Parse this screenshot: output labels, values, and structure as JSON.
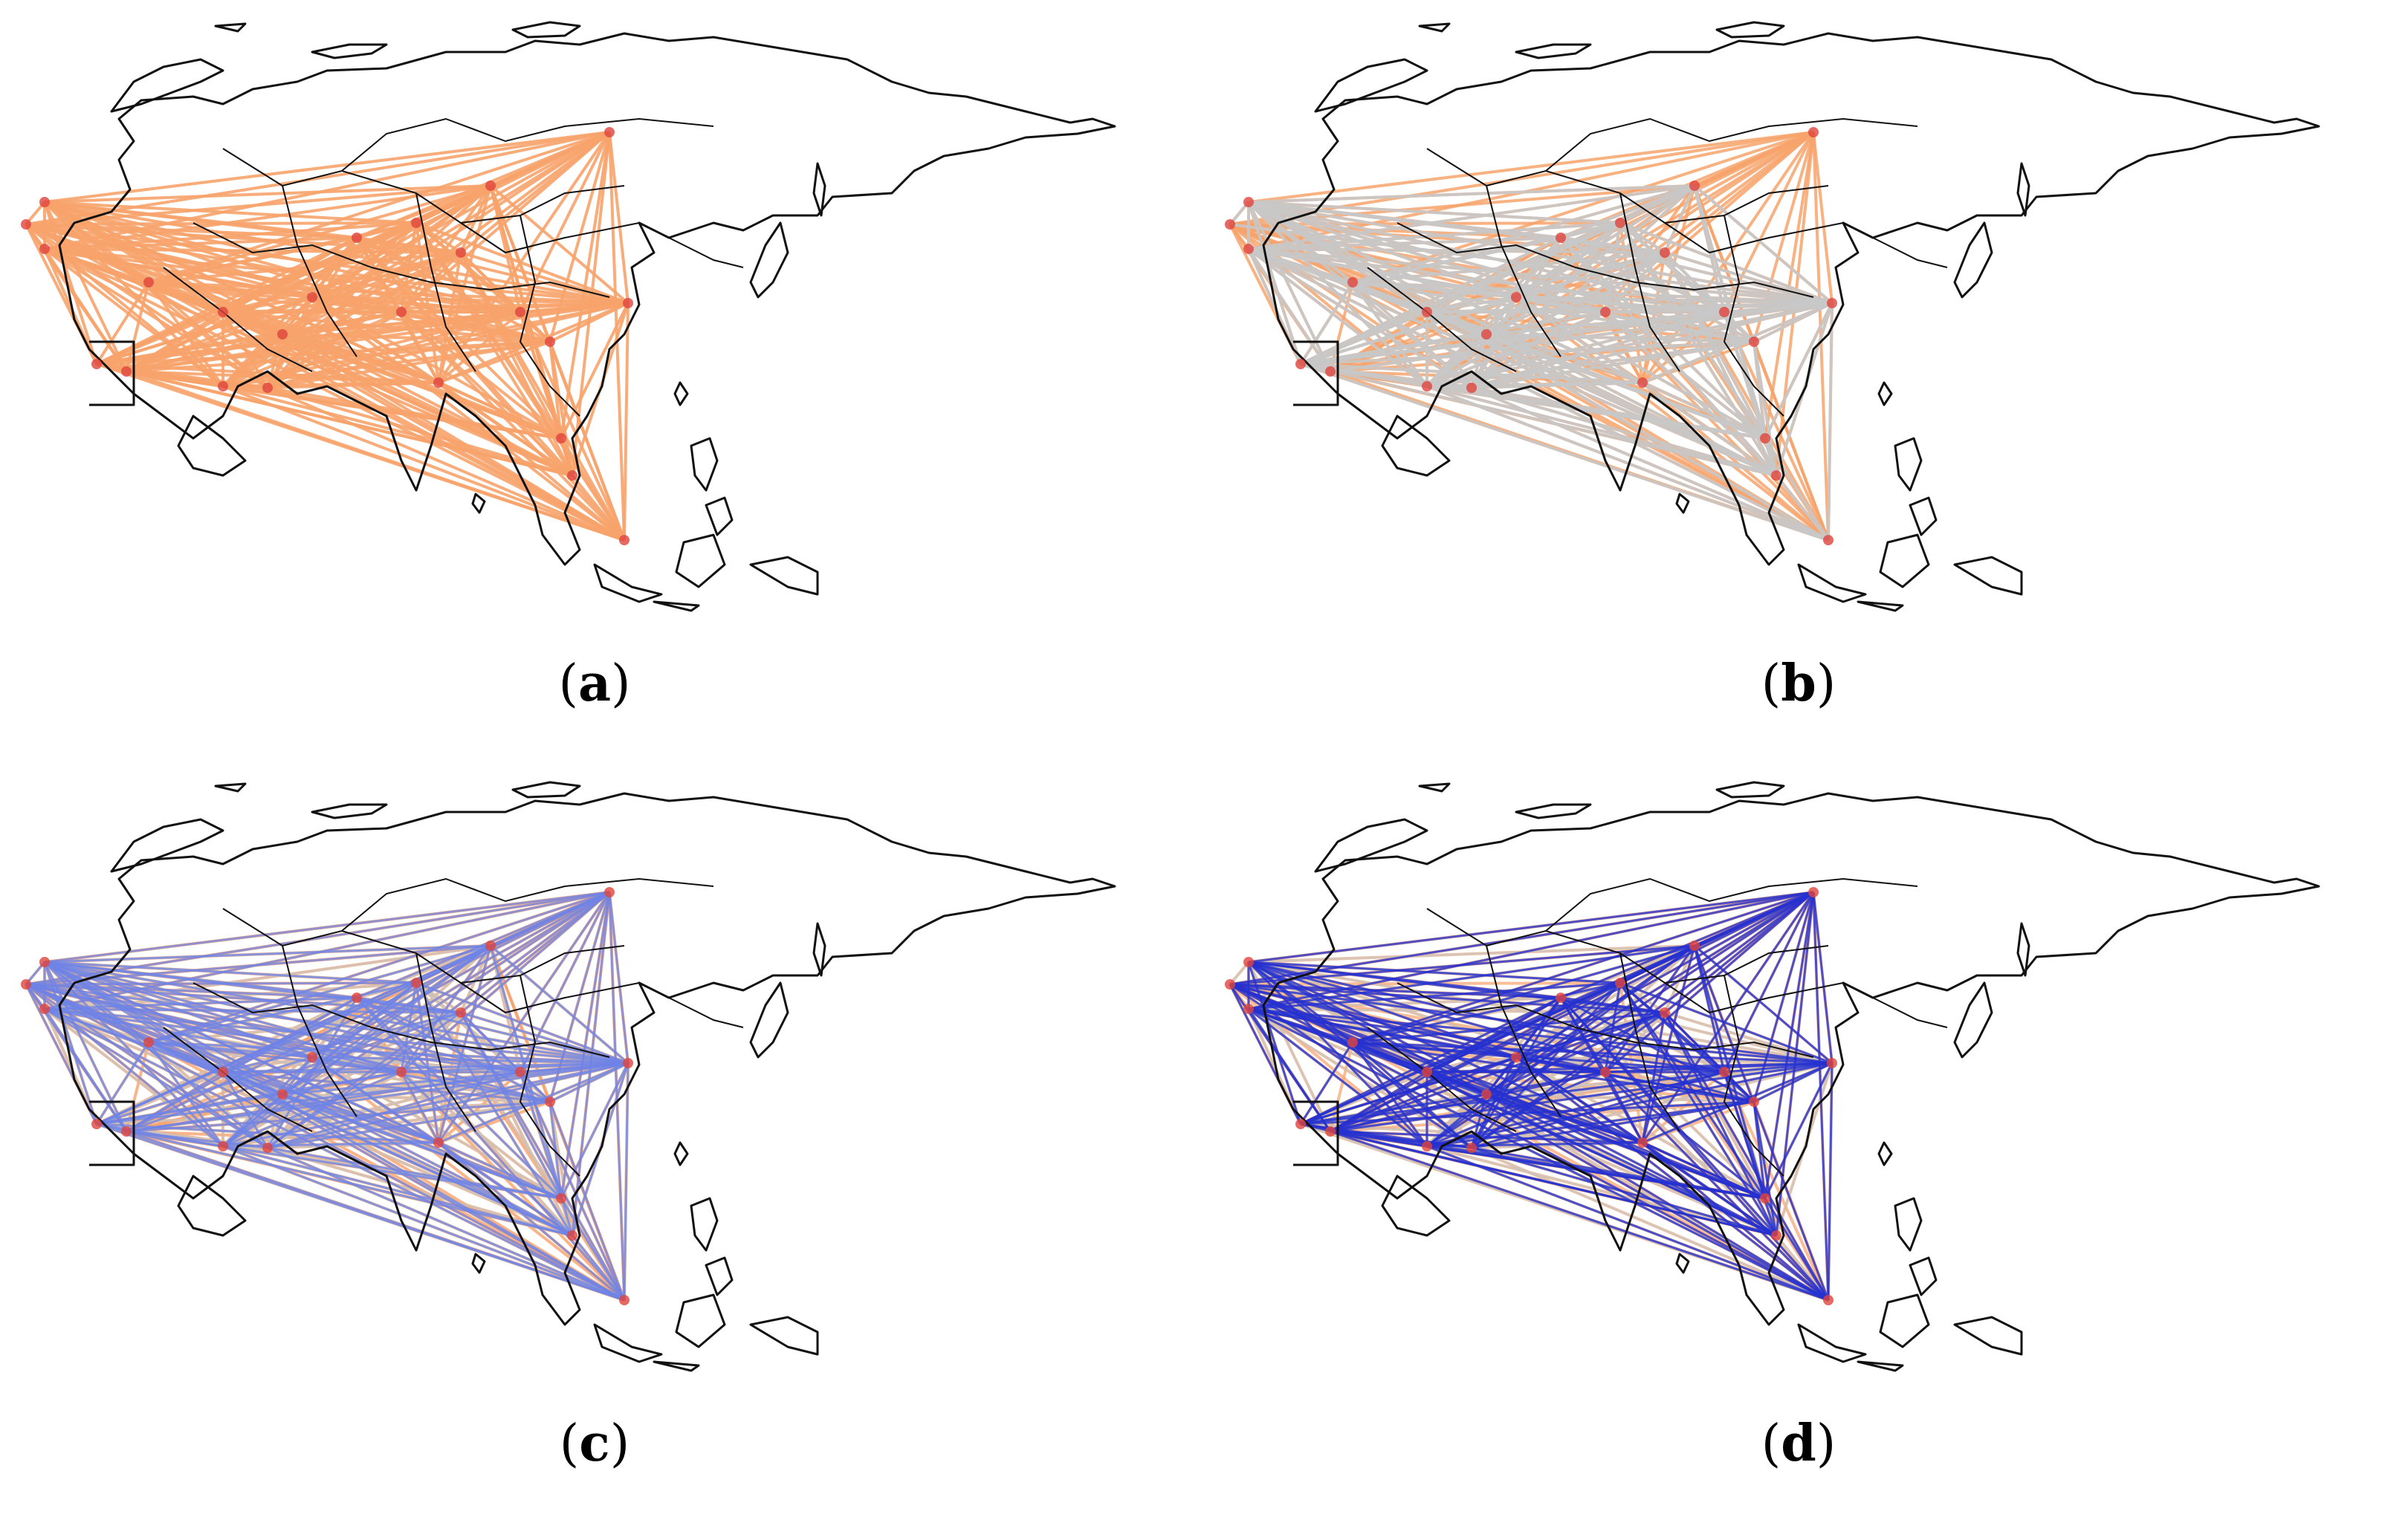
{
  "figure": {
    "panels": [
      {
        "id": "a",
        "label": "a"
      },
      {
        "id": "b",
        "label": "b"
      },
      {
        "id": "c",
        "label": "c"
      },
      {
        "id": "d",
        "label": "d"
      }
    ]
  },
  "colors": {
    "coastline": "#111111",
    "layer_orange": "#f7a36b",
    "layer_gray": "#c8c8c8",
    "layer_light_blue": "#6f83e6",
    "layer_dark_blue": "#2531d0",
    "node": "#e0443c"
  }
}
